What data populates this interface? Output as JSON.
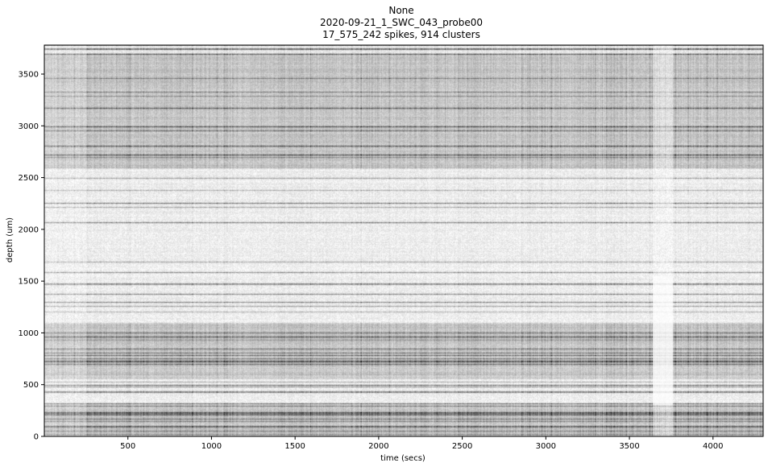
{
  "chart_data": {
    "type": "heatmap",
    "title_lines": [
      "None",
      "2020-09-21_1_SWC_043_probe00",
      "17_575_242 spikes, 914 clusters"
    ],
    "xlabel": "time (secs)",
    "ylabel": "depth (um)",
    "xlim": [
      0,
      4300
    ],
    "ylim": [
      0,
      3780
    ],
    "xticks": [
      500,
      1000,
      1500,
      2000,
      2500,
      3000,
      3500,
      4000
    ],
    "yticks": [
      0,
      500,
      1000,
      1500,
      2000,
      2500,
      3000,
      3500
    ],
    "colormap": "binary",
    "grid": false,
    "dense_bands_depth": [
      [
        0,
        300
      ],
      [
        550,
        1100
      ],
      [
        2600,
        3700
      ]
    ],
    "sparse_column_time": [
      3640,
      3760
    ]
  }
}
